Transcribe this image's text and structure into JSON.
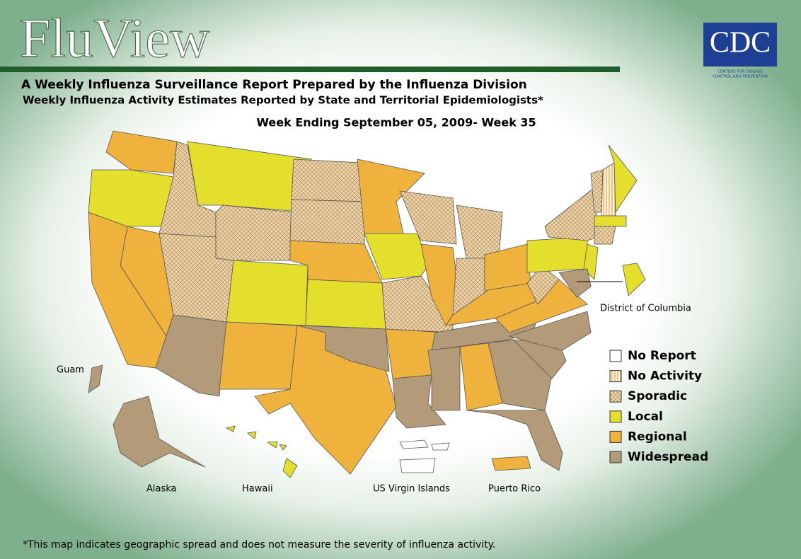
{
  "header": {
    "title": "FluView",
    "subtitle": "A Weekly Influenza Surveillance Report Prepared by the Influenza Division",
    "subtitle2": "Weekly Influenza Activity Estimates Reported by State and Territorial Epidemiologists*",
    "week": "Week Ending September 05, 2009- Week 35"
  },
  "logo": {
    "mark": "CDC",
    "tagline1": "CENTERS FOR DISEASE",
    "tagline2": "CONTROL AND PREVENTION"
  },
  "legend": {
    "items": [
      {
        "label": "No Report",
        "color": "#ffffff"
      },
      {
        "label": "No Activity",
        "color": "#f7e6c0"
      },
      {
        "label": "Sporadic",
        "color": "#ecd7ad"
      },
      {
        "label": "Local",
        "color": "#e4df2c"
      },
      {
        "label": "Regional",
        "color": "#efb33d"
      },
      {
        "label": "Widespread",
        "color": "#b39b7a"
      }
    ]
  },
  "labels": {
    "dc": "District of Columbia",
    "guam": "Guam",
    "alaska": "Alaska",
    "hawaii": "Hawaii",
    "usvi": "US Virgin Islands",
    "pr": "Puerto Rico"
  },
  "footnote": "*This map indicates geographic spread and does not measure the severity of influenza activity."
}
